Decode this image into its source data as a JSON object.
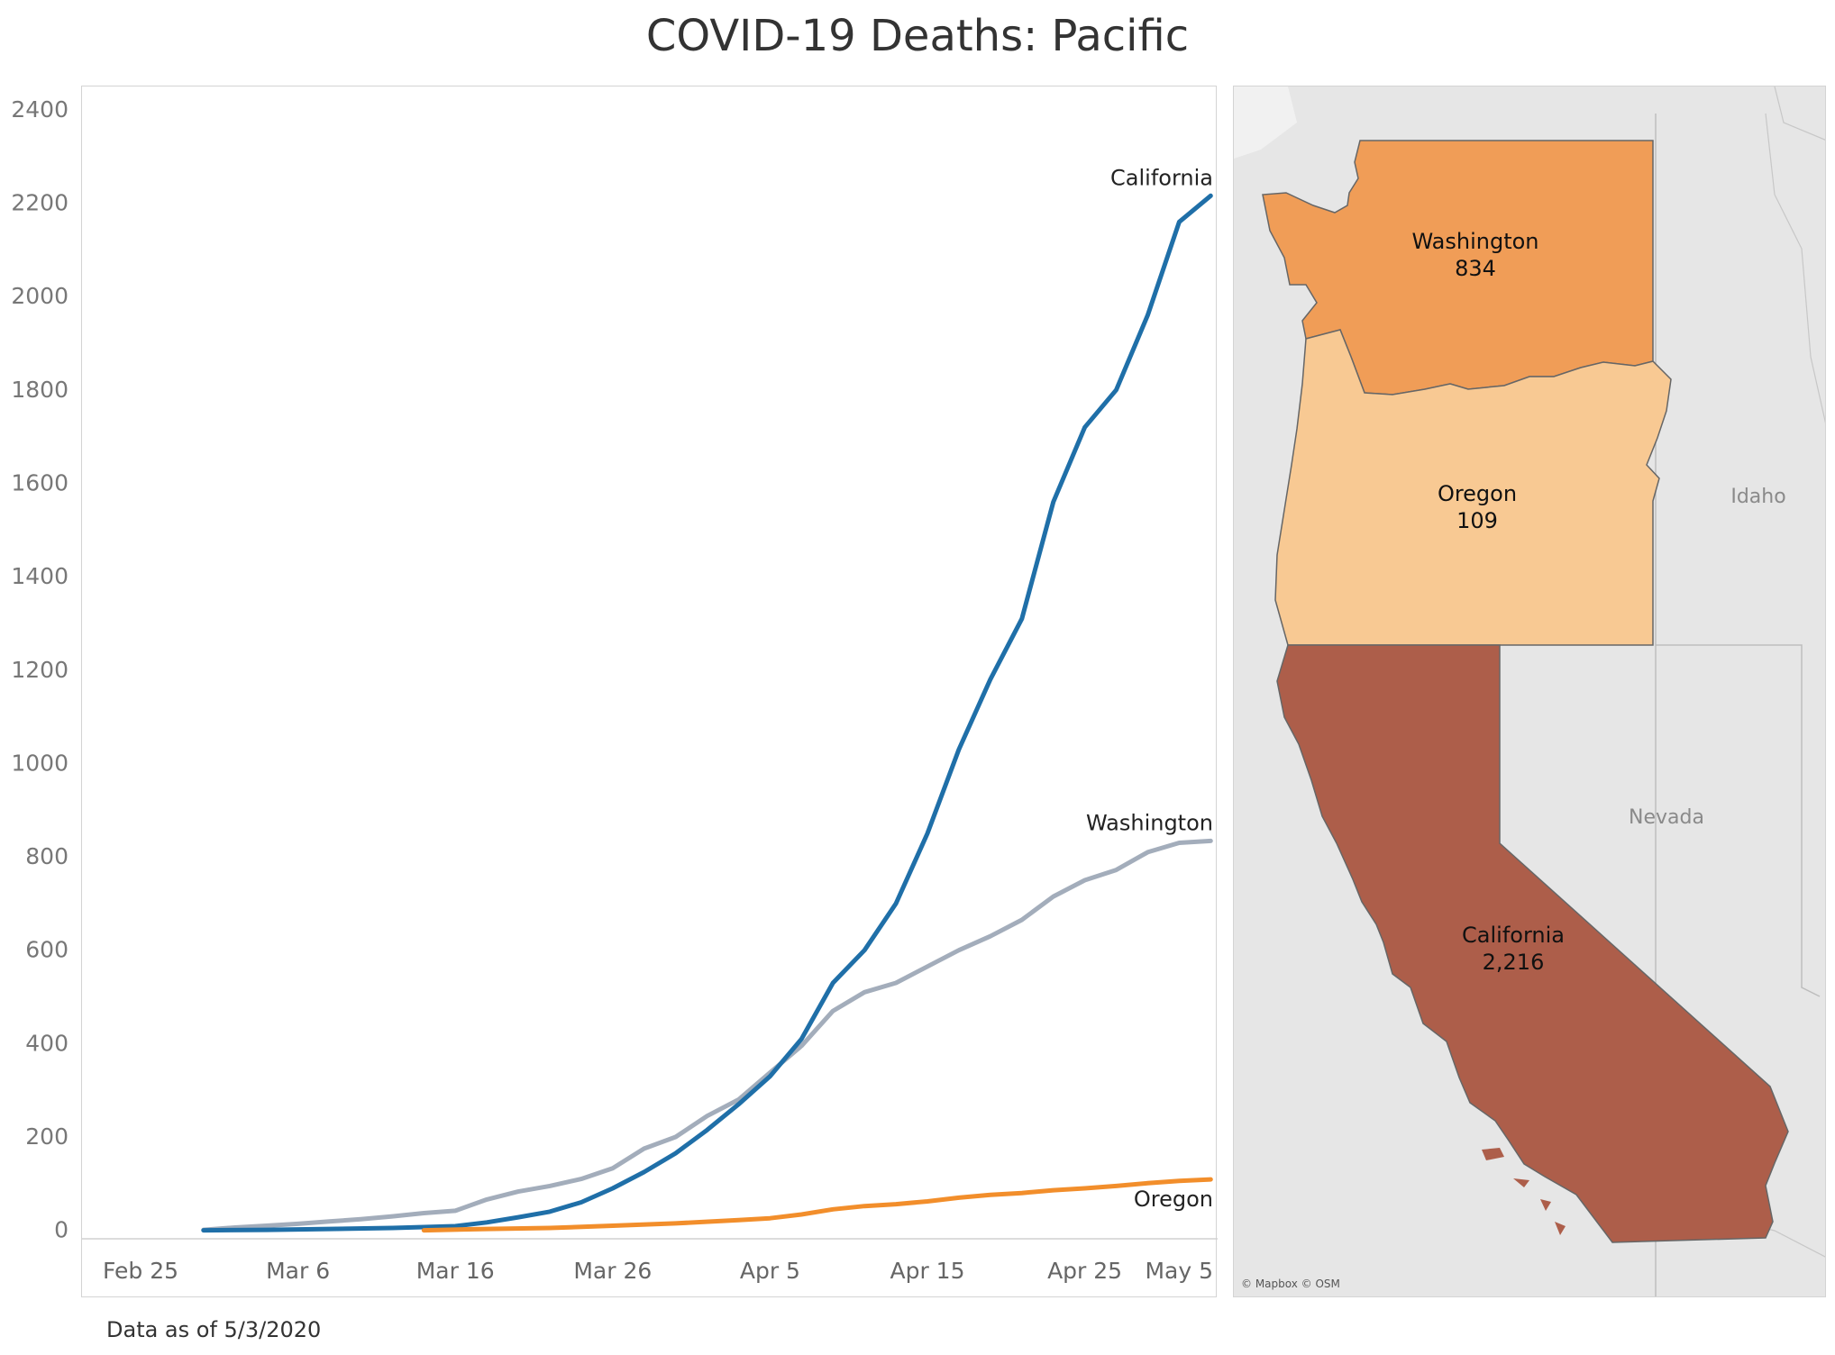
{
  "title": "COVID-19 Deaths: Pacific",
  "footnote": "Data as of 5/3/2020",
  "chart_data": {
    "type": "line",
    "x_start": "Feb 25",
    "x_ticks": [
      "Feb 25",
      "Mar 6",
      "Mar 16",
      "Mar 26",
      "Apr 5",
      "Apr 15",
      "Apr 25",
      "May 5"
    ],
    "y_ticks": [
      0,
      200,
      400,
      600,
      800,
      1000,
      1200,
      1400,
      1600,
      1800,
      2000,
      2200,
      2400
    ],
    "ylim": [
      -20,
      2450
    ],
    "xlabel": "",
    "ylabel": "",
    "grid": false,
    "series": [
      {
        "name": "Washington",
        "color": "#a3adbb",
        "x": [
          "Feb 29",
          "Mar 2",
          "Mar 4",
          "Mar 6",
          "Mar 8",
          "Mar 10",
          "Mar 12",
          "Mar 14",
          "Mar 16",
          "Mar 18",
          "Mar 20",
          "Mar 22",
          "Mar 24",
          "Mar 26",
          "Mar 28",
          "Mar 30",
          "Apr 1",
          "Apr 3",
          "Apr 5",
          "Apr 7",
          "Apr 9",
          "Apr 11",
          "Apr 13",
          "Apr 15",
          "Apr 17",
          "Apr 19",
          "Apr 21",
          "Apr 23",
          "Apr 25",
          "Apr 27",
          "Apr 29",
          "May 1",
          "May 3"
        ],
        "values": [
          1,
          6,
          10,
          14,
          19,
          24,
          30,
          37,
          42,
          66,
          83,
          95,
          110,
          133,
          175,
          200,
          245,
          280,
          338,
          395,
          470,
          510,
          530,
          565,
          600,
          630,
          665,
          715,
          750,
          772,
          810,
          830,
          834
        ]
      },
      {
        "name": "California",
        "color": "#1f6fa8",
        "x": [
          "Feb 29",
          "Mar 4",
          "Mar 8",
          "Mar 12",
          "Mar 16",
          "Mar 18",
          "Mar 20",
          "Mar 22",
          "Mar 24",
          "Mar 26",
          "Mar 28",
          "Mar 30",
          "Apr 1",
          "Apr 3",
          "Apr 5",
          "Apr 7",
          "Apr 9",
          "Apr 11",
          "Apr 13",
          "Apr 15",
          "Apr 17",
          "Apr 19",
          "Apr 21",
          "Apr 23",
          "Apr 25",
          "Apr 27",
          "Apr 29",
          "May 1",
          "May 3"
        ],
        "values": [
          0,
          1,
          3,
          5,
          9,
          17,
          28,
          40,
          60,
          90,
          125,
          165,
          215,
          270,
          330,
          410,
          530,
          600,
          700,
          850,
          1030,
          1180,
          1310,
          1560,
          1720,
          1800,
          1960,
          2160,
          2216
        ]
      },
      {
        "name": "Oregon",
        "color": "#f28e2b",
        "x": [
          "Mar 14",
          "Mar 18",
          "Mar 22",
          "Mar 26",
          "Mar 30",
          "Apr 3",
          "Apr 5",
          "Apr 7",
          "Apr 9",
          "Apr 11",
          "Apr 13",
          "Apr 15",
          "Apr 17",
          "Apr 19",
          "Apr 21",
          "Apr 23",
          "Apr 25",
          "Apr 27",
          "Apr 29",
          "May 1",
          "May 3"
        ],
        "values": [
          0,
          3,
          5,
          10,
          15,
          22,
          26,
          34,
          45,
          52,
          56,
          62,
          70,
          76,
          80,
          86,
          90,
          95,
          101,
          106,
          109
        ]
      }
    ],
    "series_labels": [
      "California",
      "Washington",
      "Oregon"
    ]
  },
  "map": {
    "states": [
      {
        "name": "Washington",
        "value": "834",
        "color": "#f09d57"
      },
      {
        "name": "Oregon",
        "value": "109",
        "color": "#f8c993"
      },
      {
        "name": "California",
        "value": "2,216",
        "color": "#ad5e4a"
      }
    ],
    "other_labels": [
      "Idaho",
      "Nevada"
    ],
    "credit": "© Mapbox © OSM"
  }
}
